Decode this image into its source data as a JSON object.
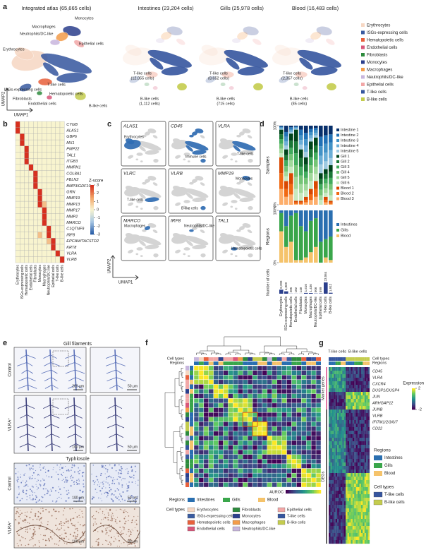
{
  "panel_labels": [
    "a",
    "b",
    "c",
    "d",
    "e",
    "f",
    "g"
  ],
  "cell_types": [
    "Erythrocytes",
    "ISGs-expressing cells",
    "Hematopoietic cells",
    "Endothelial cells",
    "Fibroblasts",
    "Monocytes",
    "Macrophages",
    "Neutrophils/DC-like",
    "Epithelial cells",
    "T-like cells",
    "B-like cells"
  ],
  "cell_type_colors": [
    "#f6d7c3",
    "#3a5ba0",
    "#e8603c",
    "#d9577a",
    "#2e8b3e",
    "#2b3f8c",
    "#f39c4a",
    "#c8b6dd",
    "#f2a7a7",
    "#35559e",
    "#c4cc4e"
  ],
  "regions": [
    "Intestines",
    "Gills",
    "Blood"
  ],
  "region_colors": [
    "#2a6fb0",
    "#3aa64b",
    "#f5c36b"
  ],
  "panel_a": {
    "titles": [
      "Integrated atlas (65,665 cells)",
      "Intestines (23,204 cells)",
      "Gills (25,978 cells)",
      "Blood (16,483 cells)"
    ],
    "axis_x": "UMAP1",
    "axis_y": "UMAP2",
    "atlas_labels": [
      "Macrophages",
      "Monocytes",
      "Neutrophils/DC-like",
      "Epithelial cells",
      "Erythrocytes",
      "ISGs-expressing cells",
      "T-like cells",
      "Hematopoietic cells",
      "Fibroblasts",
      "Endothelial cells",
      "B-like cells"
    ],
    "subset_labels": [
      [
        [
          "T-like cells",
          "(12,055 cells)"
        ],
        [
          "B-like cells",
          "(1,112 cells)"
        ]
      ],
      [
        [
          "T-like cells",
          "(8,652 cells)"
        ],
        [
          "B-like cells",
          "(715 cells)"
        ]
      ],
      [
        [
          "T-like cells",
          "(2,357 cells)"
        ],
        [
          "B-like cells",
          "(85 cells)"
        ]
      ]
    ]
  },
  "panel_b": {
    "genes": [
      "CYGB",
      "ALAS1",
      "GBP6",
      "MX1",
      "PMP22",
      "TAL1",
      "ITGB3",
      "MMRN1",
      "COL8A1",
      "FBLN2",
      "BMP3/GDF10",
      "GRN",
      "MMP19",
      "MMP13",
      "MMP17",
      "MMP2",
      "MARCO",
      "C1QTNF9",
      "IRF8",
      "EPCAM/TACSTD2",
      "KRT8",
      "VLRA",
      "VLRB"
    ],
    "zscore": {
      "title": "Z-score",
      "lim": [
        -3,
        3
      ],
      "ticks": [
        3,
        2,
        1,
        0,
        -1,
        -2,
        -3
      ]
    },
    "values": [
      [
        3,
        0,
        0,
        0,
        0,
        0,
        0,
        0,
        0,
        0,
        0
      ],
      [
        3,
        0,
        0,
        0,
        0,
        0,
        0,
        0,
        0,
        0,
        0
      ],
      [
        0,
        3,
        0,
        0,
        0,
        0,
        0,
        0,
        0,
        0,
        0
      ],
      [
        0,
        3,
        0,
        0,
        0,
        0,
        0,
        0,
        0,
        0,
        0
      ],
      [
        0,
        0,
        3,
        0,
        0,
        0,
        0,
        0,
        0,
        0,
        0
      ],
      [
        0,
        0,
        3,
        0,
        0,
        0,
        0,
        0,
        0,
        0,
        0
      ],
      [
        0,
        0,
        3,
        0,
        0,
        0,
        0,
        0,
        0,
        0,
        0
      ],
      [
        0,
        0,
        0,
        3,
        0,
        0,
        0,
        0,
        0,
        0,
        0
      ],
      [
        0,
        0,
        0,
        0,
        3,
        0,
        0,
        0,
        0,
        0,
        0
      ],
      [
        0,
        0,
        0,
        0,
        3,
        0,
        0,
        0,
        0,
        0,
        0
      ],
      [
        0,
        0,
        0,
        0,
        3,
        0,
        0,
        0,
        0,
        0,
        0
      ],
      [
        0,
        0,
        0,
        0,
        0,
        3,
        0,
        0,
        0,
        0,
        0
      ],
      [
        0,
        0,
        0,
        0,
        0,
        3,
        0,
        0,
        0,
        0,
        0
      ],
      [
        0,
        0,
        0,
        0,
        0,
        3,
        1,
        0,
        0,
        0,
        0
      ],
      [
        0,
        0,
        0,
        0,
        0,
        0,
        3,
        0,
        0,
        0,
        0
      ],
      [
        0,
        0,
        0,
        0,
        0,
        0,
        3,
        0,
        0,
        0,
        0
      ],
      [
        0,
        0,
        0,
        0,
        0,
        0,
        3,
        0,
        0,
        0,
        0
      ],
      [
        0,
        0,
        0,
        0,
        0,
        0,
        0,
        3,
        0,
        0,
        0
      ],
      [
        0,
        0,
        0,
        0,
        0,
        1,
        0,
        3,
        0,
        0,
        0
      ],
      [
        0,
        0,
        0,
        0,
        0,
        0,
        0,
        1,
        3,
        0,
        0
      ],
      [
        0,
        0,
        0,
        0,
        0,
        0,
        0,
        0,
        3,
        0,
        0
      ],
      [
        0,
        0,
        0,
        0,
        0,
        0,
        0,
        0,
        0,
        3,
        0
      ],
      [
        0,
        0,
        0,
        0,
        0,
        0,
        0,
        0,
        0,
        0,
        3
      ]
    ]
  },
  "panel_c": {
    "axis_x": "UMAP1",
    "axis_y": "UMAP2",
    "plots": [
      {
        "gene": "ALAS1",
        "label": "Erythrocytes"
      },
      {
        "gene": "CD45",
        "label": "Immune cells"
      },
      {
        "gene": "VLRA",
        "label": "T-like cells"
      },
      {
        "gene": "VLRC",
        "label": "T-like cells"
      },
      {
        "gene": "VLRB",
        "label": "B-like cells"
      },
      {
        "gene": "MMP19",
        "label": "Monocytes"
      },
      {
        "gene": "MARCO",
        "label": "Macrophages"
      },
      {
        "gene": "IRF8",
        "label": "Neutrophils/DC-like"
      },
      {
        "gene": "TAL1",
        "label": "Hematopoietic cells"
      }
    ]
  },
  "panel_d": {
    "samples_chart": {
      "type": "bar",
      "stacked": true,
      "y_label": "Samples",
      "ylim": [
        0,
        100
      ],
      "yticks": [
        {
          "value": 100,
          "label": "100%"
        },
        {
          "value": 0,
          "label": "0%"
        }
      ],
      "series": [
        {
          "name": "Intestine 1",
          "color": "#08306b",
          "values": [
            1,
            8,
            2,
            1,
            5,
            9,
            4,
            3,
            14,
            12,
            11
          ]
        },
        {
          "name": "Intestine 2",
          "color": "#2171b5",
          "values": [
            1,
            6,
            2,
            1,
            7,
            8,
            4,
            3,
            12,
            11,
            10
          ]
        },
        {
          "name": "Intestine 3",
          "color": "#4292c6",
          "values": [
            1,
            6,
            2,
            1,
            6,
            8,
            4,
            3,
            12,
            11,
            10
          ]
        },
        {
          "name": "Intestine 4",
          "color": "#6baed6",
          "values": [
            1,
            5,
            2,
            1,
            6,
            8,
            4,
            3,
            11,
            11,
            10
          ]
        },
        {
          "name": "Intestine 5",
          "color": "#9ecae1",
          "values": [
            1,
            5,
            2,
            1,
            6,
            7,
            4,
            3,
            11,
            10,
            9
          ]
        },
        {
          "name": "Gill 1",
          "color": "#00441b",
          "values": [
            6,
            7,
            9,
            15,
            11,
            9,
            10,
            10,
            7,
            6,
            8
          ]
        },
        {
          "name": "Gill 2",
          "color": "#1b7837",
          "values": [
            6,
            7,
            9,
            15,
            11,
            9,
            10,
            9,
            7,
            6,
            8
          ]
        },
        {
          "name": "Gill 3",
          "color": "#41ab5d",
          "values": [
            6,
            7,
            8,
            15,
            11,
            8,
            10,
            9,
            7,
            6,
            8
          ]
        },
        {
          "name": "Gill 4",
          "color": "#74c476",
          "values": [
            6,
            7,
            8,
            15,
            11,
            8,
            10,
            9,
            7,
            6,
            7
          ]
        },
        {
          "name": "Gill 5",
          "color": "#a1d99b",
          "values": [
            6,
            6,
            8,
            15,
            11,
            8,
            10,
            9,
            6,
            6,
            7
          ]
        },
        {
          "name": "Gill 6",
          "color": "#c7e9c0",
          "values": [
            5,
            6,
            8,
            15,
            10,
            8,
            10,
            9,
            6,
            5,
            7
          ]
        },
        {
          "name": "Blood 1",
          "color": "#d94801",
          "values": [
            20,
            10,
            14,
            2,
            2,
            4,
            7,
            10,
            0,
            4,
            2
          ]
        },
        {
          "name": "Blood 2",
          "color": "#f16913",
          "values": [
            20,
            10,
            13,
            2,
            2,
            3,
            7,
            10,
            0,
            3,
            2
          ]
        },
        {
          "name": "Blood 3",
          "color": "#fdae6b",
          "values": [
            20,
            10,
            13,
            1,
            1,
            3,
            6,
            10,
            0,
            3,
            1
          ]
        }
      ]
    },
    "regions_chart": {
      "type": "bar",
      "stacked": true,
      "y_label": "Regions",
      "ylim": [
        0,
        100
      ],
      "yticks": [
        {
          "value": 100,
          "label": "100%"
        },
        {
          "value": 0,
          "label": "0%"
        }
      ],
      "series": [
        {
          "name": "Intestines",
          "color": "#2a6fb0",
          "values": [
            5,
            30,
            10,
            5,
            30,
            40,
            20,
            15,
            60,
            55,
            50
          ]
        },
        {
          "name": "Gills",
          "color": "#3aa64b",
          "values": [
            35,
            40,
            50,
            90,
            65,
            50,
            60,
            55,
            40,
            35,
            45
          ]
        },
        {
          "name": "Blood",
          "color": "#f5c36b",
          "values": [
            60,
            30,
            40,
            5,
            5,
            10,
            20,
            30,
            0,
            10,
            5
          ]
        }
      ]
    },
    "cells_chart": {
      "type": "bar",
      "y_label": "Number of cells",
      "color": "#2b3f8c",
      "values": [
        8209,
        4869,
        285,
        182,
        148,
        1616,
        1436,
        506,
        599,
        23064,
        1912
      ],
      "value_labels": [
        "8,209",
        "4,869",
        "285",
        "182",
        "148",
        "1,616",
        "1,436",
        "506",
        "599",
        "23,064",
        "1,912"
      ]
    }
  },
  "panel_e": {
    "titles": [
      "Gill filaments",
      "Typhlosole"
    ],
    "row_labels": [
      "Control",
      "VLRA⁺",
      "Control",
      "VLRA⁺"
    ],
    "scale_bars": [
      "200 μm",
      "50 μm",
      "100 μm",
      "50 μm",
      "100 μm",
      "50 μm",
      "100 μm",
      "50 μm"
    ]
  },
  "panel_f": {
    "annotation_labels": [
      "Cell types",
      "Regions"
    ],
    "regions_title": "Regions",
    "cell_types_title": "Cell types",
    "colorbar_title": "AUROC"
  },
  "panel_g": {
    "annotation_labels": [
      "Cell types",
      "Regions"
    ],
    "column_labels": [
      "T-like cells",
      "B-like cells"
    ],
    "genes": [
      "CD45",
      "VLRA",
      "CXCR4",
      "DUSP1/DUSP4",
      "JUN",
      "ARHGAP12",
      "JUNB",
      "VLRB",
      "IFITM1/2/3/6/7",
      "CD22"
    ],
    "group_labels": [
      "Marker genes",
      "DEGs"
    ],
    "colorbar": {
      "title": "Expression",
      "lim": [
        -2,
        2
      ],
      "ticks": [
        2,
        -2
      ]
    },
    "regions_title": "Regions",
    "cell_types_title": "Cell types"
  }
}
